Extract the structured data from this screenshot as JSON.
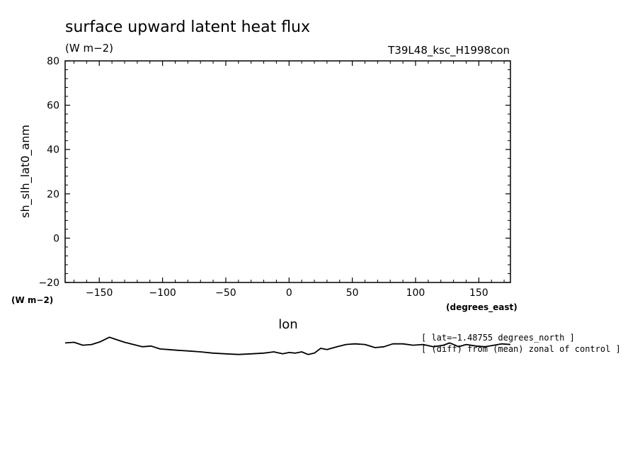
{
  "chart_data": {
    "type": "line",
    "title": "surface upward latent heat flux",
    "units": "(W m−2)",
    "run_label": "T39L48_ksc_H1998con",
    "ylabel": "sh_slh_lat0_anm",
    "yunits": "(W m−2)",
    "xlabel": "lon",
    "xunits": "(degrees_east)",
    "xlim": [
      -177,
      175
    ],
    "ylim": [
      -20,
      80
    ],
    "x_ticks": [
      -150,
      -100,
      -50,
      0,
      50,
      100,
      150
    ],
    "x_tick_labels": [
      "−150",
      "−100",
      "−50",
      "0",
      "50",
      "100",
      "150"
    ],
    "y_ticks": [
      -20,
      0,
      20,
      40,
      60,
      80
    ],
    "y_tick_labels": [
      "−20",
      "0",
      "20",
      "40",
      "60",
      "80"
    ],
    "grid": false,
    "notes": [
      "[ lat=−1.48755 degrees_north ]",
      "[ (diff) from (mean) zonal of control ]"
    ],
    "series": [
      {
        "x": [
          -177,
          -170,
          -163,
          -156,
          -149,
          -142,
          -137,
          -130,
          -123,
          -116,
          -109,
          -102,
          -95,
          -88,
          -80,
          -70,
          -60,
          -50,
          -40,
          -30,
          -20,
          -12,
          -5,
          0,
          5,
          10,
          15,
          20,
          25,
          30,
          38,
          45,
          52,
          60,
          68,
          75,
          82,
          90,
          98,
          106,
          114,
          122,
          127,
          130,
          134,
          140,
          148,
          155,
          162,
          168,
          175
        ],
        "values": [
          -47.3,
          -47.0,
          -48.3,
          -48.0,
          -46.7,
          -44.7,
          -45.7,
          -47.0,
          -48.0,
          -49.0,
          -48.7,
          -50.0,
          -50.3,
          -50.6,
          -50.9,
          -51.3,
          -51.9,
          -52.2,
          -52.5,
          -52.2,
          -51.9,
          -51.3,
          -52.2,
          -51.6,
          -51.9,
          -51.3,
          -52.5,
          -51.9,
          -49.7,
          -50.3,
          -49.0,
          -48.0,
          -47.7,
          -48.0,
          -49.4,
          -49.0,
          -47.7,
          -47.7,
          -48.3,
          -48.0,
          -49.0,
          -48.3,
          -47.3,
          -48.0,
          -49.0,
          -48.0,
          -48.7,
          -49.0,
          -48.3,
          -47.7,
          -48.0
        ]
      }
    ]
  }
}
